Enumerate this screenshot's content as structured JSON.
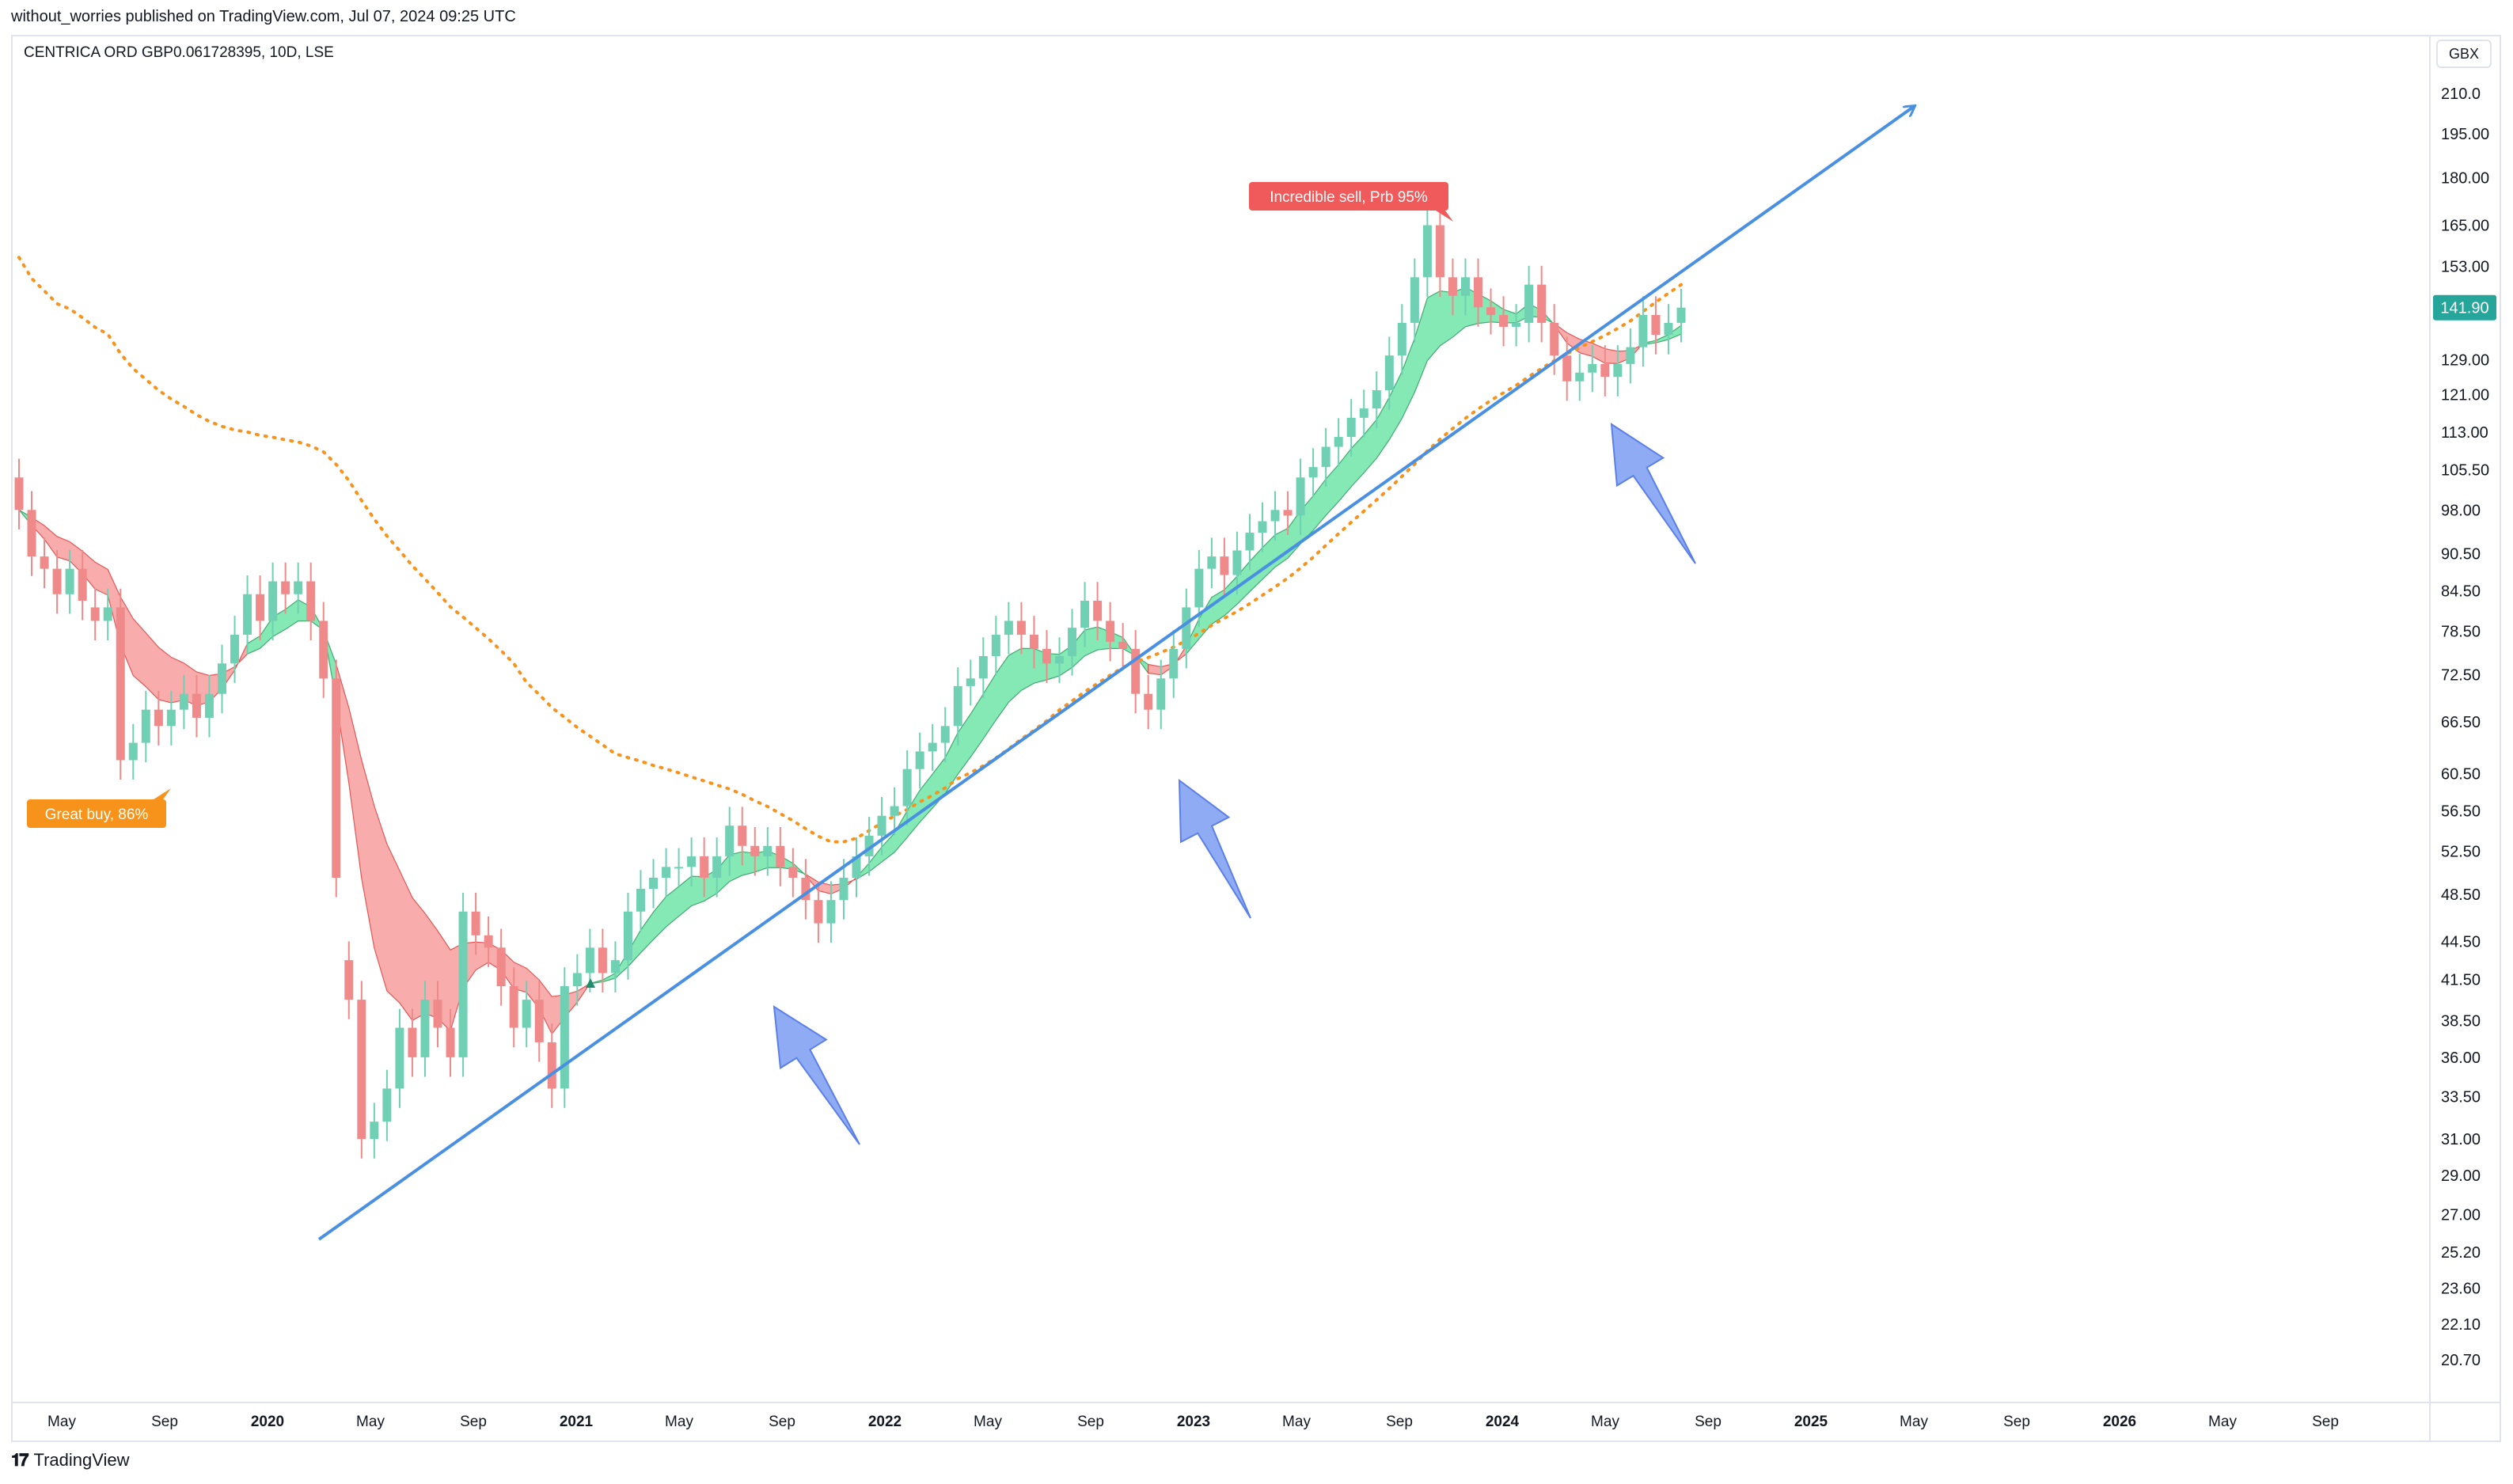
{
  "header": {
    "published_by": "without_worries published on TradingView.com, Jul 07, 2024 09:25 UTC",
    "symbol_line": "CENTRICA ORD GBP0.061728395, 10D, LSE",
    "currency": "GBX"
  },
  "price_axis": {
    "labels": [
      "210.0",
      "195.00",
      "180.00",
      "165.00",
      "153.00",
      "141.90",
      "129.00",
      "121.00",
      "113.00",
      "105.50",
      "98.00",
      "90.50",
      "84.50",
      "78.50",
      "72.50",
      "66.50",
      "60.50",
      "56.50",
      "52.50",
      "48.50",
      "44.50",
      "41.50",
      "38.50",
      "36.00",
      "33.50",
      "31.00",
      "29.00",
      "27.00",
      "25.20",
      "23.60",
      "22.10",
      "20.70"
    ],
    "current_price": "141.90",
    "current_price_color": "#26a69a"
  },
  "time_axis": {
    "labels": [
      "May",
      "Sep",
      "2020",
      "May",
      "Sep",
      "2021",
      "May",
      "Sep",
      "2022",
      "May",
      "Sep",
      "2023",
      "May",
      "Sep",
      "2024",
      "May",
      "Sep",
      "2025",
      "May",
      "Sep",
      "2026",
      "May",
      "Sep"
    ],
    "bold": [
      "2020",
      "2021",
      "2022",
      "2023",
      "2024",
      "2025",
      "2026"
    ]
  },
  "annotations": {
    "buy_label": "Great buy,  86%",
    "buy_color": "#f7931a",
    "sell_label": "Incredible sell, Prb 95%",
    "sell_color": "#f05a5a"
  },
  "colors": {
    "up": "#6fd0b4",
    "down": "#f08a8a",
    "bull_band": "#7ee8b0",
    "bear_band": "#f8a8a8",
    "trendline": "#4a90e2",
    "arrow": "#7b9cf2",
    "ma_dotted": "#f7931a"
  },
  "chart_data": {
    "type": "candlestick",
    "symbol": "CENTRICA ORD GBP0.061728395",
    "interval": "10D",
    "exchange": "LSE",
    "unit": "GBX",
    "y_scale": "log",
    "ylim": [
      20.0,
      220.0
    ],
    "last_price": 141.9,
    "x_range": [
      "2019-04",
      "2026-10"
    ],
    "candles_approx": [
      [
        104,
        98
      ],
      [
        98,
        90
      ],
      [
        90,
        88
      ],
      [
        88,
        84
      ],
      [
        84,
        88
      ],
      [
        88,
        83
      ],
      [
        82,
        80
      ],
      [
        80,
        82
      ],
      [
        82,
        62
      ],
      [
        62,
        64
      ],
      [
        64,
        68
      ],
      [
        68,
        66
      ],
      [
        66,
        68
      ],
      [
        68,
        70
      ],
      [
        70,
        67
      ],
      [
        67,
        70
      ],
      [
        70,
        74
      ],
      [
        74,
        78
      ],
      [
        78,
        84
      ],
      [
        84,
        80
      ],
      [
        80,
        86
      ],
      [
        86,
        84
      ],
      [
        84,
        86
      ],
      [
        86,
        80
      ],
      [
        80,
        72
      ],
      [
        72,
        50
      ],
      [
        43,
        40
      ],
      [
        40,
        31
      ],
      [
        31,
        32
      ],
      [
        32,
        34
      ],
      [
        34,
        38
      ],
      [
        38,
        36
      ],
      [
        36,
        40
      ],
      [
        40,
        38
      ],
      [
        38,
        36
      ],
      [
        36,
        47
      ],
      [
        47,
        45
      ],
      [
        45,
        44
      ],
      [
        44,
        41
      ],
      [
        41,
        38
      ],
      [
        38,
        40
      ],
      [
        40,
        37
      ],
      [
        37,
        34
      ],
      [
        34,
        41
      ],
      [
        41,
        42
      ],
      [
        42,
        44
      ],
      [
        44,
        42
      ],
      [
        42,
        43
      ],
      [
        43,
        47
      ],
      [
        47,
        49
      ],
      [
        49,
        50
      ],
      [
        50,
        51
      ],
      [
        51,
        51
      ],
      [
        51,
        52
      ],
      [
        52,
        50
      ],
      [
        50,
        52
      ],
      [
        52,
        55
      ],
      [
        55,
        53
      ],
      [
        53,
        52
      ],
      [
        52,
        53
      ],
      [
        53,
        51
      ],
      [
        51,
        50
      ],
      [
        50,
        48
      ],
      [
        48,
        46
      ],
      [
        46,
        48
      ],
      [
        48,
        50
      ],
      [
        50,
        52
      ],
      [
        52,
        54
      ],
      [
        54,
        56
      ],
      [
        56,
        57
      ],
      [
        57,
        61
      ],
      [
        61,
        63
      ],
      [
        63,
        64
      ],
      [
        64,
        66
      ],
      [
        66,
        71
      ],
      [
        71,
        72
      ],
      [
        72,
        75
      ],
      [
        75,
        78
      ],
      [
        78,
        80
      ],
      [
        80,
        78
      ],
      [
        78,
        76
      ],
      [
        76,
        74
      ],
      [
        74,
        75
      ],
      [
        75,
        79
      ],
      [
        79,
        83
      ],
      [
        83,
        80
      ],
      [
        80,
        77
      ],
      [
        77,
        76
      ],
      [
        76,
        70
      ],
      [
        70,
        68
      ],
      [
        68,
        72
      ],
      [
        72,
        76
      ],
      [
        76,
        82
      ],
      [
        82,
        88
      ],
      [
        88,
        90
      ],
      [
        90,
        87
      ],
      [
        87,
        91
      ],
      [
        91,
        94
      ],
      [
        94,
        96
      ],
      [
        96,
        98
      ],
      [
        98,
        97
      ],
      [
        97,
        104
      ],
      [
        104,
        106
      ],
      [
        106,
        110
      ],
      [
        110,
        112
      ],
      [
        112,
        116
      ],
      [
        116,
        118
      ],
      [
        118,
        122
      ],
      [
        122,
        130
      ],
      [
        130,
        138
      ],
      [
        138,
        150
      ],
      [
        150,
        165
      ],
      [
        165,
        150
      ],
      [
        150,
        145
      ],
      [
        145,
        150
      ],
      [
        150,
        142
      ],
      [
        142,
        140
      ],
      [
        140,
        137
      ],
      [
        137,
        138
      ],
      [
        138,
        148
      ],
      [
        148,
        138
      ],
      [
        138,
        130
      ],
      [
        130,
        124
      ],
      [
        124,
        126
      ],
      [
        126,
        128
      ],
      [
        128,
        125
      ],
      [
        125,
        128
      ],
      [
        128,
        132
      ],
      [
        132,
        140
      ],
      [
        140,
        135
      ],
      [
        135,
        138
      ],
      [
        138,
        141.9
      ]
    ],
    "bands": [
      {
        "name": "",
        "color": "bear",
        "period": "2019-04 to 2021-01"
      },
      {
        "name": "",
        "color": "bull",
        "period": "2021-01 to 2024-06"
      }
    ],
    "trendline": {
      "from": [
        "2020-03",
        25.8
      ],
      "to": [
        "2025-05",
        205
      ]
    },
    "signals": [
      {
        "label": "Great buy,  86%",
        "date": "2019-11",
        "price": 60.5
      },
      {
        "label": "Incredible sell, Prb 95%",
        "date": "2023-09",
        "price": 176
      }
    ]
  }
}
